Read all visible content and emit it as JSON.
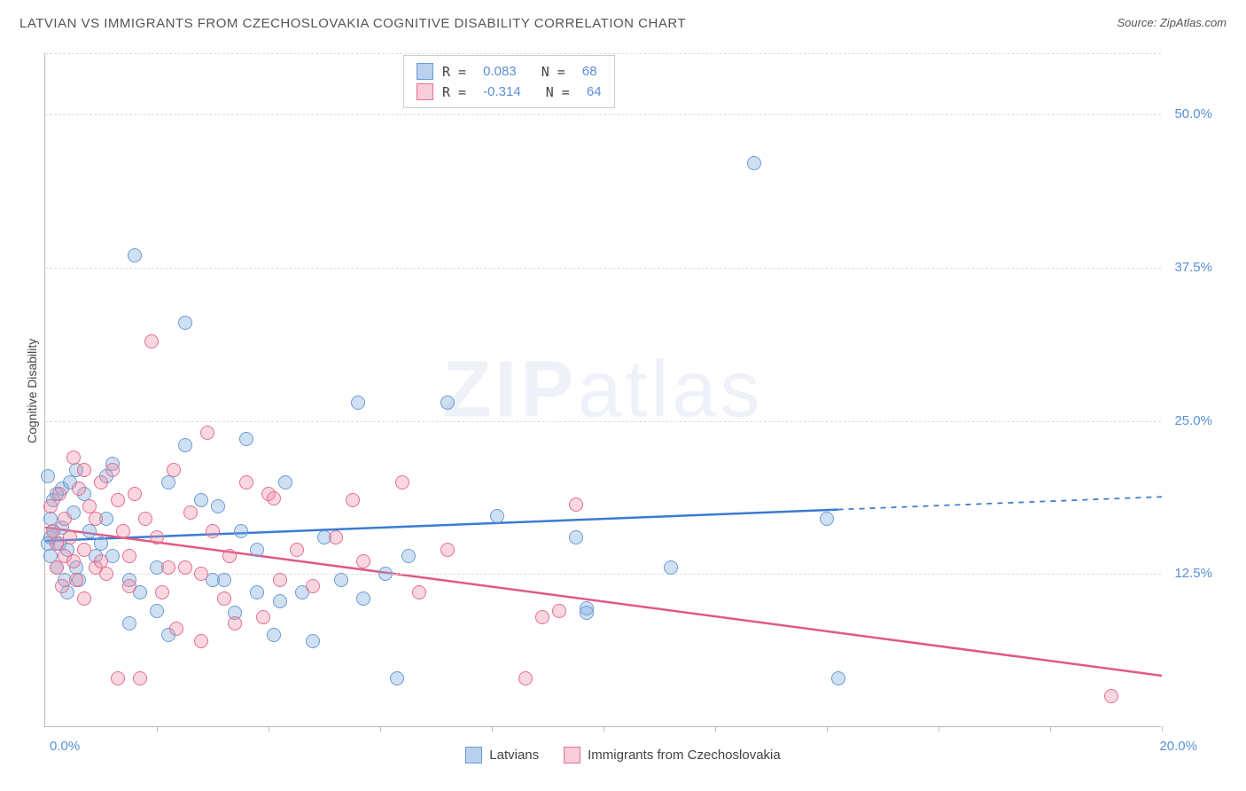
{
  "chart": {
    "type": "scatter",
    "title": "LATVIAN VS IMMIGRANTS FROM CZECHOSLOVAKIA COGNITIVE DISABILITY CORRELATION CHART",
    "source_label": "Source: ZipAtlas.com",
    "y_axis_label": "Cognitive Disability",
    "watermark": "ZIPatlas",
    "background_color": "#ffffff",
    "grid_color": "#dddddd",
    "axis_color": "#bbbbbb",
    "text_color": "#555555",
    "tick_label_color": "#5a8fd6",
    "title_fontsize": 15,
    "xlim": [
      0,
      20
    ],
    "ylim": [
      0,
      55
    ],
    "x_tick_positions": [
      2,
      4,
      6,
      8,
      10,
      12,
      14,
      16,
      18,
      20
    ],
    "x_start_label": "0.0%",
    "x_end_label": "20.0%",
    "y_ticks": [
      {
        "v": 12.5,
        "label": "12.5%"
      },
      {
        "v": 25.0,
        "label": "25.0%"
      },
      {
        "v": 37.5,
        "label": "37.5%"
      },
      {
        "v": 50.0,
        "label": "50.0%"
      }
    ],
    "series": [
      {
        "id": "latvians",
        "label": "Latvians",
        "R": "0.083",
        "N": "68",
        "color_fill": "rgba(120,165,220,0.35)",
        "color_stroke": "#6a9cd4",
        "swatch_fill": "#b8d1ec",
        "swatch_border": "#6a9cd4",
        "trend": {
          "y_at_x0": 15.2,
          "y_at_xmax": 18.8,
          "solid_until_x": 14.2,
          "color": "#3b7bd1",
          "width": 2.5
        }
      },
      {
        "id": "czech",
        "label": "Immigrants from Czechoslovakia",
        "R": "-0.314",
        "N": "64",
        "color_fill": "rgba(235,140,165,0.35)",
        "color_stroke": "#e56f8f",
        "swatch_fill": "#f6cdd8",
        "swatch_border": "#e56f8f",
        "trend": {
          "y_at_x0": 16.3,
          "y_at_xmax": 4.2,
          "solid_until_x": 20,
          "color": "#e05a83",
          "width": 2.5
        }
      }
    ],
    "marker_diameter": 16,
    "points": {
      "latvians": [
        [
          0.05,
          20.5
        ],
        [
          0.1,
          17
        ],
        [
          0.1,
          15.5
        ],
        [
          0.1,
          14
        ],
        [
          0.15,
          16
        ],
        [
          0.2,
          19
        ],
        [
          0.2,
          13
        ],
        [
          0.15,
          18.5
        ],
        [
          0.25,
          15
        ],
        [
          0.05,
          15
        ],
        [
          1.0,
          15
        ],
        [
          1.1,
          17
        ],
        [
          1.1,
          20.5
        ],
        [
          1.2,
          14
        ],
        [
          1.2,
          21.5
        ],
        [
          1.5,
          8.5
        ],
        [
          1.6,
          38.5
        ],
        [
          2.0,
          9.5
        ],
        [
          2.2,
          20
        ],
        [
          2.2,
          7.5
        ],
        [
          2.5,
          23
        ],
        [
          2.5,
          33
        ],
        [
          2.8,
          18.5
        ],
        [
          3.0,
          12
        ],
        [
          3.2,
          12
        ],
        [
          3.4,
          9.3
        ],
        [
          3.6,
          23.5
        ],
        [
          3.8,
          11
        ],
        [
          3.8,
          14.5
        ],
        [
          4.1,
          7.5
        ],
        [
          4.2,
          10.3
        ],
        [
          4.6,
          11
        ],
        [
          4.8,
          7
        ],
        [
          5.0,
          15.5
        ],
        [
          5.3,
          12
        ],
        [
          5.6,
          26.5
        ],
        [
          5.7,
          10.5
        ],
        [
          6.1,
          12.5
        ],
        [
          6.3,
          4
        ],
        [
          6.5,
          14
        ],
        [
          7.2,
          26.5
        ],
        [
          8.1,
          17.2
        ],
        [
          9.5,
          15.5
        ],
        [
          9.7,
          9.7
        ],
        [
          9.7,
          9.3
        ],
        [
          11.2,
          13
        ],
        [
          12.7,
          46
        ],
        [
          14.0,
          17
        ],
        [
          14.2,
          4
        ],
        [
          1.5,
          12
        ],
        [
          1.7,
          11
        ],
        [
          2.0,
          13
        ],
        [
          0.4,
          14.5
        ],
        [
          0.55,
          13
        ],
        [
          0.55,
          21
        ],
        [
          0.6,
          12
        ],
        [
          0.7,
          19
        ],
        [
          0.8,
          16
        ],
        [
          0.9,
          14
        ],
        [
          0.5,
          17.5
        ],
        [
          0.3,
          16.3
        ],
        [
          0.3,
          19.5
        ],
        [
          0.35,
          12
        ],
        [
          0.45,
          20
        ],
        [
          0.4,
          11
        ],
        [
          3.1,
          18
        ],
        [
          3.5,
          16
        ],
        [
          4.3,
          20
        ]
      ],
      "czech": [
        [
          0.1,
          18
        ],
        [
          0.15,
          16
        ],
        [
          0.2,
          15
        ],
        [
          0.25,
          19
        ],
        [
          0.35,
          17
        ],
        [
          0.35,
          14
        ],
        [
          0.45,
          15.5
        ],
        [
          0.5,
          22
        ],
        [
          0.5,
          13.5
        ],
        [
          0.6,
          19.5
        ],
        [
          0.7,
          21
        ],
        [
          0.7,
          14.5
        ],
        [
          0.8,
          18
        ],
        [
          0.9,
          13
        ],
        [
          0.9,
          17
        ],
        [
          1.0,
          13.5
        ],
        [
          1.0,
          20
        ],
        [
          1.1,
          12.5
        ],
        [
          1.2,
          21
        ],
        [
          1.3,
          4
        ],
        [
          1.4,
          16
        ],
        [
          1.5,
          11.5
        ],
        [
          1.6,
          19
        ],
        [
          1.7,
          4
        ],
        [
          1.9,
          31.5
        ],
        [
          2.0,
          15.5
        ],
        [
          2.2,
          13
        ],
        [
          2.3,
          21
        ],
        [
          2.35,
          8
        ],
        [
          2.5,
          13
        ],
        [
          2.8,
          12.5
        ],
        [
          2.8,
          7
        ],
        [
          2.9,
          24
        ],
        [
          3.2,
          10.5
        ],
        [
          3.3,
          14
        ],
        [
          3.6,
          20
        ],
        [
          4.0,
          19
        ],
        [
          4.1,
          18.7
        ],
        [
          4.2,
          12
        ],
        [
          4.8,
          11.5
        ],
        [
          5.2,
          15.5
        ],
        [
          5.5,
          18.5
        ],
        [
          5.7,
          13.5
        ],
        [
          6.4,
          20
        ],
        [
          6.7,
          11
        ],
        [
          7.2,
          14.5
        ],
        [
          8.6,
          4
        ],
        [
          8.9,
          9
        ],
        [
          9.2,
          9.5
        ],
        [
          9.5,
          18.2
        ],
        [
          19.1,
          2.5
        ],
        [
          0.2,
          13
        ],
        [
          0.3,
          11.5
        ],
        [
          0.55,
          12
        ],
        [
          0.7,
          10.5
        ],
        [
          1.3,
          18.5
        ],
        [
          1.5,
          14
        ],
        [
          1.8,
          17
        ],
        [
          2.1,
          11
        ],
        [
          2.6,
          17.5
        ],
        [
          3.0,
          16
        ],
        [
          3.4,
          8.5
        ],
        [
          3.9,
          9
        ],
        [
          4.5,
          14.5
        ]
      ]
    }
  }
}
